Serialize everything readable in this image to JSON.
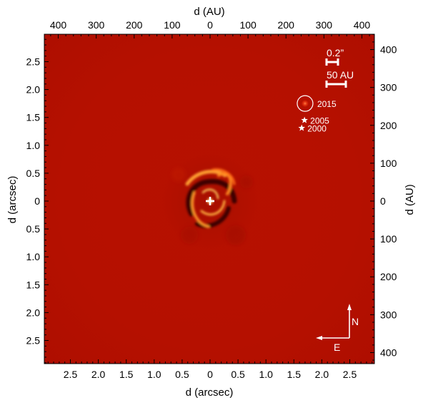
{
  "figure": {
    "x_axis_bottom": {
      "label": "d (arcsec)",
      "tick_labels": [
        "2.5",
        "2.0",
        "1.5",
        "1.0",
        "0.5",
        "0",
        "0.5",
        "1.0",
        "1.5",
        "2.0",
        "2.5"
      ],
      "tick_values": [
        2.5,
        2.0,
        1.5,
        1.0,
        0.5,
        0,
        -0.5,
        -1.0,
        -1.5,
        -2.0,
        -2.5
      ],
      "range": [
        3.0,
        -3.0
      ]
    },
    "x_axis_top": {
      "label": "d (AU)",
      "tick_labels": [
        "400",
        "300",
        "200",
        "100",
        "0",
        "100",
        "200",
        "300",
        "400"
      ],
      "tick_values": [
        400,
        300,
        200,
        100,
        0,
        -100,
        -200,
        -300,
        -400
      ]
    },
    "y_axis_left": {
      "label": "d (arcsec)",
      "tick_labels": [
        "2.5",
        "2.0",
        "1.5",
        "1.0",
        "0.5",
        "0",
        "0.5",
        "1.0",
        "1.5",
        "2.0",
        "2.5"
      ],
      "tick_values": [
        2.5,
        2.0,
        1.5,
        1.0,
        0.5,
        0,
        -0.5,
        -1.0,
        -1.5,
        -2.0,
        -2.5
      ],
      "range": [
        -3.0,
        3.0
      ]
    },
    "y_axis_right": {
      "label": "d (AU)",
      "tick_labels": [
        "400",
        "300",
        "200",
        "100",
        "0",
        "100",
        "200",
        "300",
        "400"
      ],
      "tick_values": [
        400,
        300,
        200,
        100,
        0,
        -100,
        -200,
        -300,
        -400
      ]
    },
    "scale_bars": [
      {
        "label": "0.2”",
        "length_arcsec": 0.2
      },
      {
        "label": "50 AU",
        "length_au": 50
      }
    ],
    "epochs": [
      {
        "label": "2015",
        "marker": "circled-dot-icon",
        "x_arcsec": -1.7,
        "y_arcsec": 1.75
      },
      {
        "label": "2005",
        "marker": "star-icon",
        "x_arcsec": -1.69,
        "y_arcsec": 1.45
      },
      {
        "label": "2000",
        "marker": "star-icon",
        "x_arcsec": -1.64,
        "y_arcsec": 1.31
      }
    ],
    "compass": {
      "north": "N",
      "east": "E"
    },
    "colors": {
      "background": "#b81000",
      "bright": "#ffb030",
      "dark": "#3a0500",
      "markers": "#ffffff"
    }
  }
}
